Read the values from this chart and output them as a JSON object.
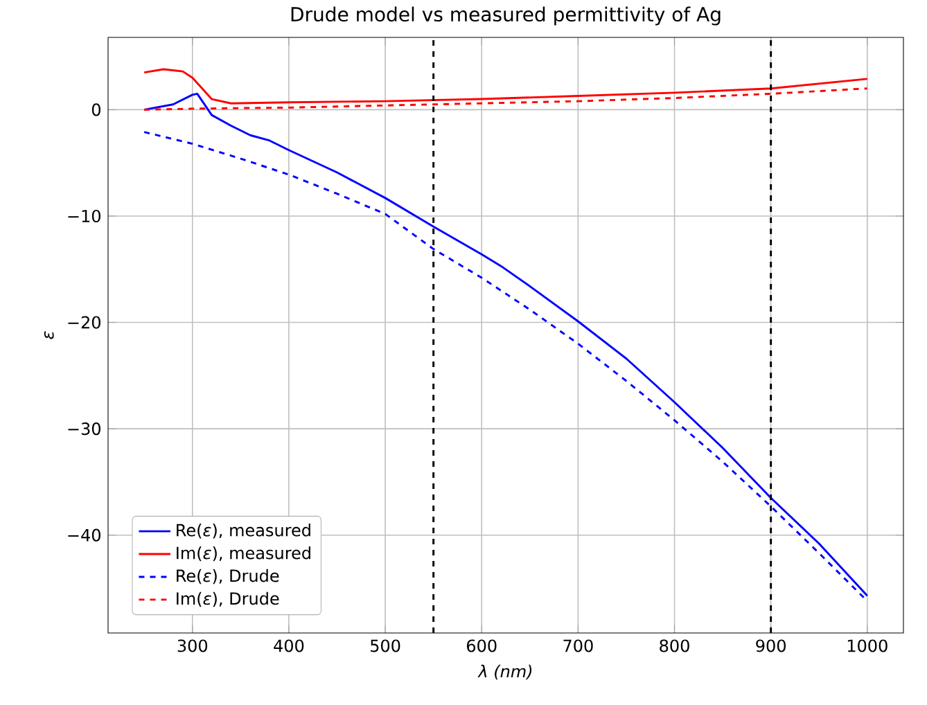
{
  "chart_data": {
    "type": "line",
    "title": "Drude model vs measured permittivity of Ag",
    "xlabel": "λ (nm)",
    "ylabel": "ε",
    "xlim": [
      212.5,
      1037.5
    ],
    "ylim": [
      -49.2,
      6.8
    ],
    "xticks": [
      300,
      400,
      500,
      600,
      700,
      800,
      900,
      1000
    ],
    "yticks": [
      {
        "value": -40,
        "label": "−40"
      },
      {
        "value": -30,
        "label": "−30"
      },
      {
        "value": -20,
        "label": "−20"
      },
      {
        "value": -10,
        "label": "−10"
      },
      0
    ],
    "grid": true,
    "legend": "bottom left",
    "marker": "none",
    "ref_lines": [
      {
        "axis": "x",
        "value": 550,
        "color": "#000000",
        "line_style": "dashed"
      },
      {
        "axis": "x",
        "value": 900,
        "color": "#000000",
        "line_style": "dashed"
      }
    ],
    "series": [
      {
        "name": "Re(*ε*), measured",
        "color": "#0000ff",
        "line_style": "solid",
        "x": [
          250,
          280,
          300,
          305,
          320,
          340,
          360,
          380,
          400,
          450,
          500,
          550,
          600,
          620,
          650,
          700,
          750,
          800,
          850,
          900,
          950,
          1000
        ],
        "values": [
          0,
          0.5,
          1.4,
          1.5,
          -0.5,
          -1.5,
          -2.4,
          -2.9,
          -3.8,
          -5.9,
          -8.3,
          -11.0,
          -13.6,
          -14.7,
          -16.6,
          -19.9,
          -23.4,
          -27.5,
          -31.8,
          -36.5,
          -40.8,
          -45.7
        ]
      },
      {
        "name": "Im(*ε*), measured",
        "color": "#ff0000",
        "line_style": "solid",
        "x": [
          250,
          270,
          290,
          300,
          310,
          320,
          340,
          400,
          500,
          600,
          700,
          800,
          900,
          1000
        ],
        "values": [
          3.5,
          3.8,
          3.6,
          3.0,
          2.0,
          1.0,
          0.6,
          0.7,
          0.8,
          1.0,
          1.3,
          1.6,
          2.0,
          2.9
        ]
      },
      {
        "name": "Re(*ε*), Drude",
        "color": "#0000ff",
        "line_style": "dashed",
        "x": [
          250,
          300,
          350,
          400,
          450,
          500,
          550,
          600,
          650,
          700,
          750,
          800,
          850,
          900,
          950,
          1000
        ],
        "values": [
          -2.1,
          -3.2,
          -4.6,
          -6.1,
          -7.9,
          -9.8,
          -13.1,
          -15.8,
          -18.8,
          -22.0,
          -25.5,
          -29.2,
          -33.1,
          -37.3,
          -41.7,
          -46.2
        ]
      },
      {
        "name": "Im(*ε*), Drude",
        "color": "#ff0000",
        "line_style": "dashed",
        "x": [
          250,
          300,
          400,
          500,
          600,
          700,
          800,
          900,
          1000
        ],
        "values": [
          0.0,
          0.1,
          0.2,
          0.4,
          0.6,
          0.8,
          1.1,
          1.5,
          2.0
        ]
      }
    ]
  }
}
